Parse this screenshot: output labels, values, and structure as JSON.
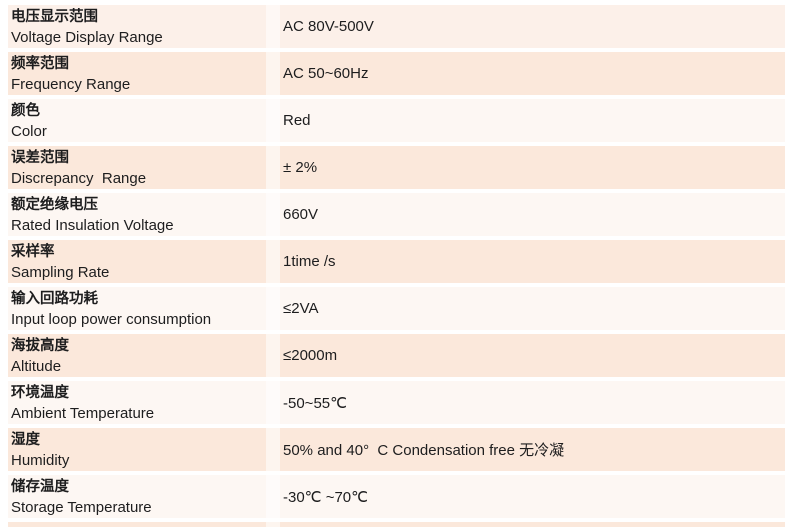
{
  "table": {
    "colors": {
      "pink": "#fbe8db",
      "light": "#fdf7f3",
      "first": "#fcf0e9",
      "text": "#1d1d1e"
    },
    "rows": [
      {
        "zh": "电压显示范围",
        "en": "Voltage Display Range",
        "value": "AC 80V-500V",
        "tone": "first"
      },
      {
        "zh": "频率范围",
        "en": "Frequency Range",
        "value": "AC 50~60Hz",
        "tone": "pink"
      },
      {
        "zh": "颜色",
        "en": "Color",
        "value": "Red",
        "tone": "light"
      },
      {
        "zh": "误差范围",
        "en": "Discrepancy  Range",
        "value": "± 2%",
        "tone": "pink"
      },
      {
        "zh": "额定绝缘电压",
        "en": "Rated Insulation Voltage",
        "value": "660V",
        "tone": "light"
      },
      {
        "zh": "采样率",
        "en": "Sampling Rate",
        "value": "1time /s",
        "tone": "pink"
      },
      {
        "zh": "输入回路功耗",
        "en": "Input loop power consumption",
        "value": "≤2VA",
        "tone": "light"
      },
      {
        "zh": "海拔高度",
        "en": "Altitude",
        "value": "≤2000m",
        "tone": "pink"
      },
      {
        "zh": "环境温度",
        "en": "Ambient Temperature",
        "value": "-50~55℃",
        "tone": "light"
      },
      {
        "zh": "湿度",
        "en": "Humidity",
        "value": "50% and 40°  C Condensation free 无冷凝",
        "tone": "pink"
      },
      {
        "zh": "储存温度",
        "en": "Storage Temperature",
        "value": "-30℃ ~70℃",
        "tone": "light"
      }
    ]
  }
}
